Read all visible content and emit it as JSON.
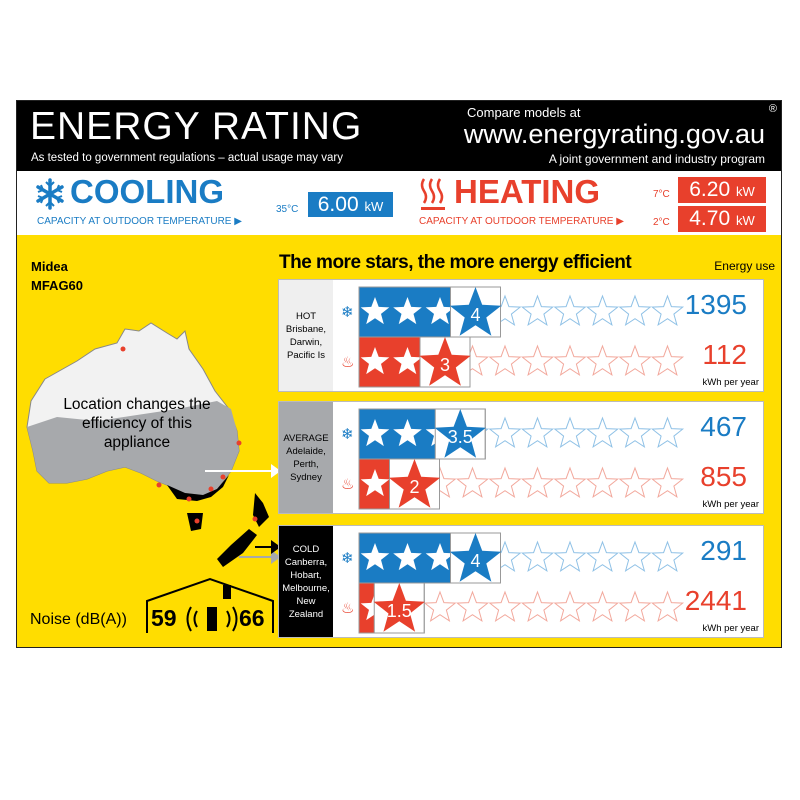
{
  "header": {
    "title": "ENERGY RATING",
    "subtitle": "As tested to government regulations – actual usage may vary",
    "compare": "Compare models at",
    "url": "www.energyrating.gov.au",
    "program": "A joint government and industry program",
    "registered": "®"
  },
  "cooling": {
    "title": "COOLING",
    "caption": "CAPACITY AT OUTDOOR TEMPERATURE ▶",
    "temp": "35°C",
    "value": "6.00",
    "unit": "kW",
    "icon": "snowflake-icon"
  },
  "heating": {
    "title": "HEATING",
    "caption": "CAPACITY AT OUTDOOR TEMPERATURE ▶",
    "temps": [
      {
        "temp": "7°C",
        "value": "6.20",
        "unit": "kW"
      },
      {
        "temp": "2°C",
        "value": "4.70",
        "unit": "kW"
      }
    ],
    "icon": "heat-waves-icon"
  },
  "product": {
    "brand": "Midea",
    "model": "MFAG60"
  },
  "tagline": "The more stars, the more energy efficient",
  "energy_use_label": "Energy use",
  "map_text": "Location changes the efficiency of this appliance",
  "noise": {
    "label": "Noise (dB(A))",
    "indoor": "59",
    "outdoor": "66"
  },
  "max_stars": 10,
  "colors": {
    "blue": "#1a7cc4",
    "red": "#e8402c",
    "yellow": "#ffdd00"
  },
  "zones": [
    {
      "name": "HOT",
      "cities": "Brisbane,\nDarwin,\nPacific Is",
      "bg": "#efefef",
      "fg": "#000",
      "cooling_stars": 4,
      "cooling_label": "4",
      "cooling_kwh": "1395",
      "heating_stars": 3,
      "heating_label": "3",
      "heating_kwh": "112",
      "unit": "kWh per year"
    },
    {
      "name": "AVERAGE",
      "cities": "Adelaide,\nPerth,\nSydney",
      "bg": "#a7a9ac",
      "fg": "#000",
      "cooling_stars": 3.5,
      "cooling_label": "3.5",
      "cooling_kwh": "467",
      "heating_stars": 2,
      "heating_label": "2",
      "heating_kwh": "855",
      "unit": "kWh per year"
    },
    {
      "name": "COLD",
      "cities": "Canberra,\nHobart,\nMelbourne,\nNew Zealand",
      "bg": "#000",
      "fg": "#fff",
      "cooling_stars": 4,
      "cooling_label": "4",
      "cooling_kwh": "291",
      "heating_stars": 1.5,
      "heating_label": "1.5",
      "heating_kwh": "2441",
      "unit": "kWh per year"
    }
  ]
}
